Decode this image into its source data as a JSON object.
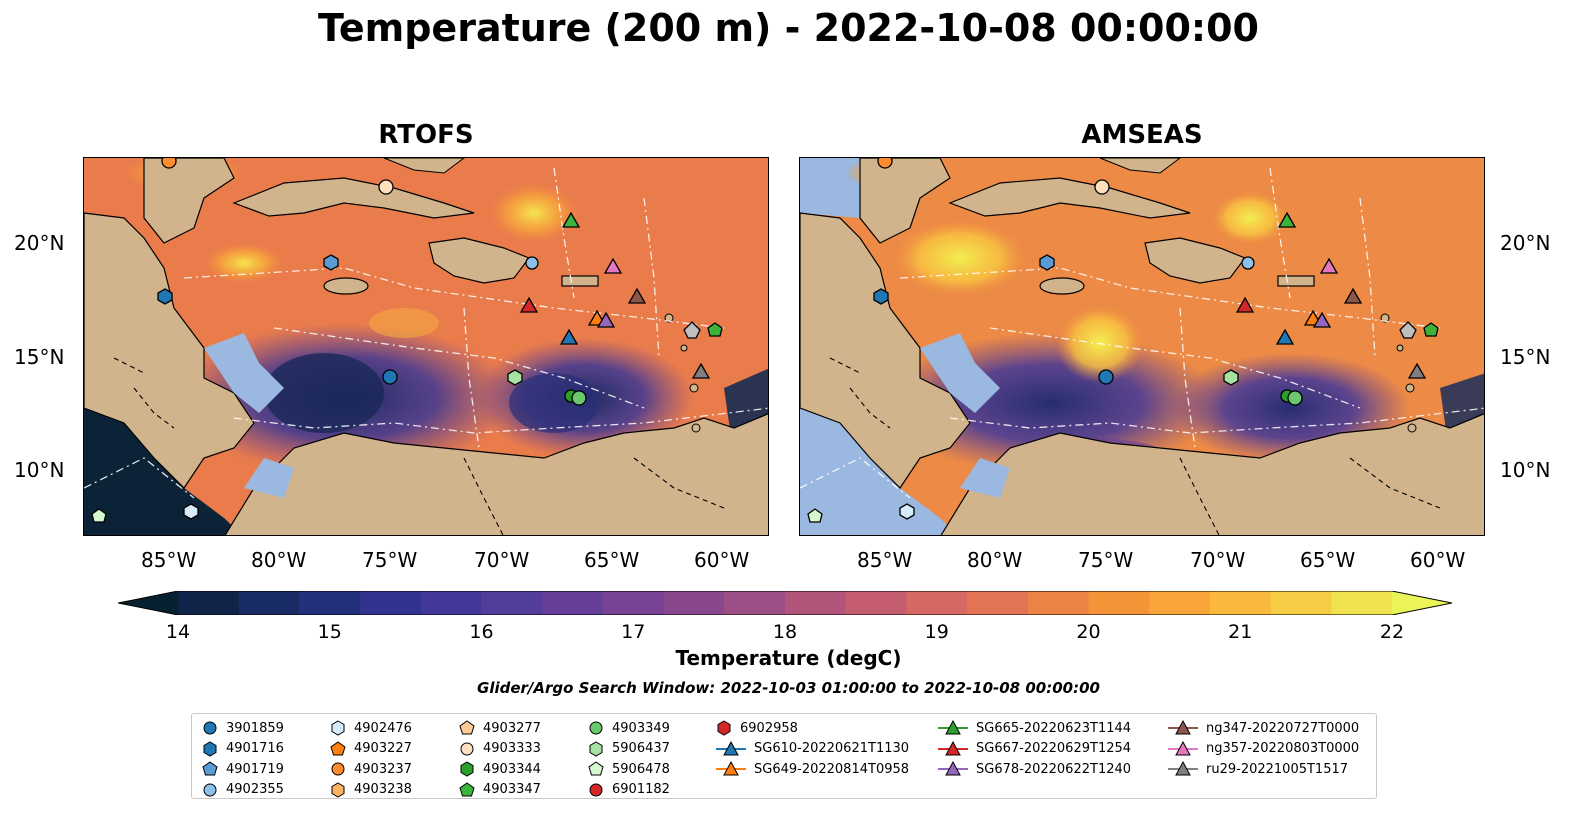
{
  "title": "Temperature (200 m) - 2022-10-08 00:00:00",
  "panels": [
    {
      "title": "RTOFS"
    },
    {
      "title": "AMSEAS"
    }
  ],
  "lon_ticks": [
    "85°W",
    "80°W",
    "75°W",
    "70°W",
    "65°W",
    "60°W"
  ],
  "lat_ticks": [
    "20°N",
    "15°N",
    "10°N"
  ],
  "colorbar": {
    "label": "Temperature (degC)",
    "ticks": [
      "14",
      "15",
      "16",
      "17",
      "18",
      "19",
      "20",
      "21",
      "22"
    ],
    "colors": [
      "#072030",
      "#0f2448",
      "#192b64",
      "#24307b",
      "#32338e",
      "#413899",
      "#533d9a",
      "#653f98",
      "#784394",
      "#8a488c",
      "#9d4e84",
      "#b1567a",
      "#c45e6e",
      "#d56962",
      "#e27454",
      "#ed8245",
      "#f59339",
      "#f9a53a",
      "#fab83e",
      "#f5cc44",
      "#f0e24c",
      "#eaf457"
    ]
  },
  "search_window": "Glider/Argo Search Window: 2022-10-03 01:00:00 to 2022-10-08 00:00:00",
  "legend": [
    [
      {
        "label": "3901859",
        "marker": "circle",
        "color": "#1f77b4"
      },
      {
        "label": "4901716",
        "marker": "hexagon",
        "color": "#1f77b4"
      },
      {
        "label": "4901719",
        "marker": "pentagon",
        "color": "#5a9bd5"
      },
      {
        "label": "4902355",
        "marker": "circle",
        "color": "#8ec1ea"
      }
    ],
    [
      {
        "label": "4902476",
        "marker": "hexagon",
        "color": "#d6ecfb"
      },
      {
        "label": "4903227",
        "marker": "pentagon",
        "color": "#ff7f0e"
      },
      {
        "label": "4903237",
        "marker": "circle",
        "color": "#ff8c2e"
      },
      {
        "label": "4903238",
        "marker": "hexagon",
        "color": "#ffb266"
      }
    ],
    [
      {
        "label": "4903277",
        "marker": "pentagon",
        "color": "#ffc996"
      },
      {
        "label": "4903333",
        "marker": "circle",
        "color": "#ffe0bf"
      },
      {
        "label": "4903344",
        "marker": "hexagon",
        "color": "#2ca02c"
      },
      {
        "label": "4903347",
        "marker": "pentagon",
        "color": "#3cb43c"
      }
    ],
    [
      {
        "label": "4903349",
        "marker": "circle",
        "color": "#6cc86c"
      },
      {
        "label": "5906437",
        "marker": "hexagon",
        "color": "#a6e3a0"
      },
      {
        "label": "5906478",
        "marker": "pentagon",
        "color": "#d7f7cf"
      },
      {
        "label": "6901182",
        "marker": "circle",
        "color": "#d62728"
      }
    ],
    [
      {
        "label": "6902958",
        "marker": "hexagon",
        "color": "#d62728"
      },
      {
        "label": "SG610-20220621T1130",
        "marker": "triangle-line",
        "color": "#1f77b4"
      },
      {
        "label": "SG649-20220814T0958",
        "marker": "triangle-line",
        "color": "#ff7f0e"
      }
    ],
    [
      {
        "label": "SG665-20220623T1144",
        "marker": "triangle-line",
        "color": "#2ca02c"
      },
      {
        "label": "SG667-20220629T1254",
        "marker": "triangle-line",
        "color": "#d62728"
      },
      {
        "label": "SG678-20220622T1240",
        "marker": "triangle-line",
        "color": "#9467bd"
      }
    ],
    [
      {
        "label": "ng347-20220727T0000",
        "marker": "triangle-line",
        "color": "#8c564b"
      },
      {
        "label": "ng357-20220803T0000",
        "marker": "triangle-line",
        "color": "#e377c2"
      },
      {
        "label": "ru29-20221005T1517",
        "marker": "triangle-line",
        "color": "#7f7f7f"
      }
    ]
  ]
}
